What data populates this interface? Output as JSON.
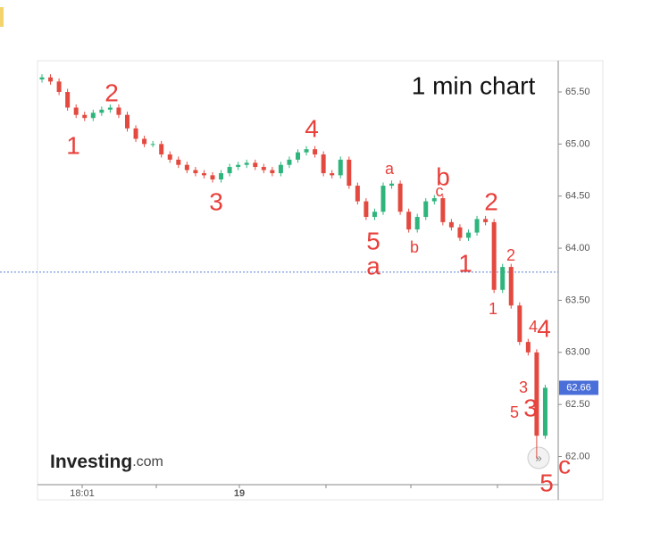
{
  "chart_data": {
    "type": "candlestick",
    "title": "1 min chart",
    "brand": "Investing",
    "brand_suffix": ".com",
    "x_labels": [
      "18:01",
      "19"
    ],
    "ylim": [
      61.73,
      65.8
    ],
    "yticks": [
      {
        "value": 62,
        "label": "62.00"
      },
      {
        "value": 62.5,
        "label": "62.50"
      },
      {
        "value": 63,
        "label": "63.00"
      },
      {
        "value": 63.5,
        "label": "63.50"
      },
      {
        "value": 64,
        "label": "64.00"
      },
      {
        "value": 64.5,
        "label": "64.50"
      },
      {
        "value": 65,
        "label": "65.00"
      },
      {
        "value": 65.5,
        "label": "65.50"
      }
    ],
    "last_price": 62.66,
    "reference_line": 63.77,
    "up_color": "#2fb57c",
    "down_color": "#e4493f",
    "open": [
      65.62,
      65.64,
      65.6,
      65.5,
      65.35,
      65.28,
      65.25,
      65.3,
      65.33,
      65.35,
      65.28,
      65.15,
      65.05,
      65.0,
      65.0,
      64.9,
      64.85,
      64.8,
      64.75,
      64.72,
      64.7,
      64.66,
      64.72,
      64.78,
      64.8,
      64.82,
      64.78,
      64.75,
      64.72,
      64.8,
      64.85,
      64.92,
      64.95,
      64.9,
      64.72,
      64.7,
      64.85,
      64.6,
      64.45,
      64.3,
      64.35,
      64.6,
      64.62,
      64.35,
      64.18,
      64.3,
      64.45,
      64.48,
      64.25,
      64.2,
      64.1,
      64.15,
      64.28,
      64.25,
      63.6,
      63.82,
      63.45,
      63.1,
      63.0,
      62.2
    ],
    "high": [
      65.67,
      65.67,
      65.63,
      65.53,
      65.38,
      65.31,
      65.33,
      65.36,
      65.38,
      65.38,
      65.31,
      65.18,
      65.08,
      65.03,
      65.03,
      64.93,
      64.88,
      64.83,
      64.78,
      64.75,
      64.73,
      64.75,
      64.81,
      64.83,
      64.85,
      64.85,
      64.81,
      64.78,
      64.83,
      64.88,
      64.95,
      64.98,
      64.98,
      64.93,
      64.75,
      64.88,
      64.88,
      64.63,
      64.48,
      64.38,
      64.63,
      64.65,
      64.65,
      64.38,
      64.33,
      64.48,
      64.51,
      64.51,
      64.28,
      64.23,
      64.18,
      64.31,
      64.31,
      64.28,
      63.85,
      63.85,
      63.48,
      63.13,
      63.03,
      62.69
    ],
    "low": [
      65.59,
      65.57,
      65.47,
      65.32,
      65.25,
      65.22,
      65.22,
      65.27,
      65.3,
      65.25,
      65.12,
      65.02,
      64.97,
      64.97,
      64.87,
      64.82,
      64.77,
      64.72,
      64.69,
      64.67,
      64.63,
      64.63,
      64.69,
      64.75,
      64.77,
      64.75,
      64.72,
      64.69,
      64.69,
      64.77,
      64.82,
      64.89,
      64.87,
      64.69,
      64.67,
      64.67,
      64.57,
      64.42,
      64.27,
      64.27,
      64.32,
      64.57,
      64.32,
      64.15,
      64.15,
      64.27,
      64.42,
      64.22,
      64.17,
      64.07,
      64.07,
      64.12,
      64.22,
      63.57,
      63.57,
      63.42,
      63.07,
      62.97,
      61.98,
      62.17
    ],
    "close": [
      65.64,
      65.6,
      65.5,
      65.35,
      65.28,
      65.25,
      65.3,
      65.33,
      65.35,
      65.28,
      65.15,
      65.05,
      65.0,
      65.0,
      64.9,
      64.85,
      64.8,
      64.75,
      64.72,
      64.7,
      64.66,
      64.72,
      64.78,
      64.8,
      64.82,
      64.78,
      64.75,
      64.72,
      64.8,
      64.85,
      64.92,
      64.95,
      64.9,
      64.72,
      64.7,
      64.85,
      64.6,
      64.45,
      64.3,
      64.35,
      64.6,
      64.62,
      64.35,
      64.18,
      64.3,
      64.45,
      64.48,
      64.25,
      64.2,
      64.1,
      64.15,
      64.28,
      64.25,
      63.6,
      63.82,
      63.45,
      63.1,
      63.0,
      62.2,
      62.66
    ],
    "annotations": [
      "1",
      "2",
      "3",
      "4",
      "5",
      "a",
      "a",
      "b",
      "c",
      "b",
      "1",
      "2",
      "1",
      "2",
      "3",
      "4",
      "4",
      "5",
      "3",
      "5",
      "c"
    ],
    "annotation_color": "#e8403b"
  }
}
